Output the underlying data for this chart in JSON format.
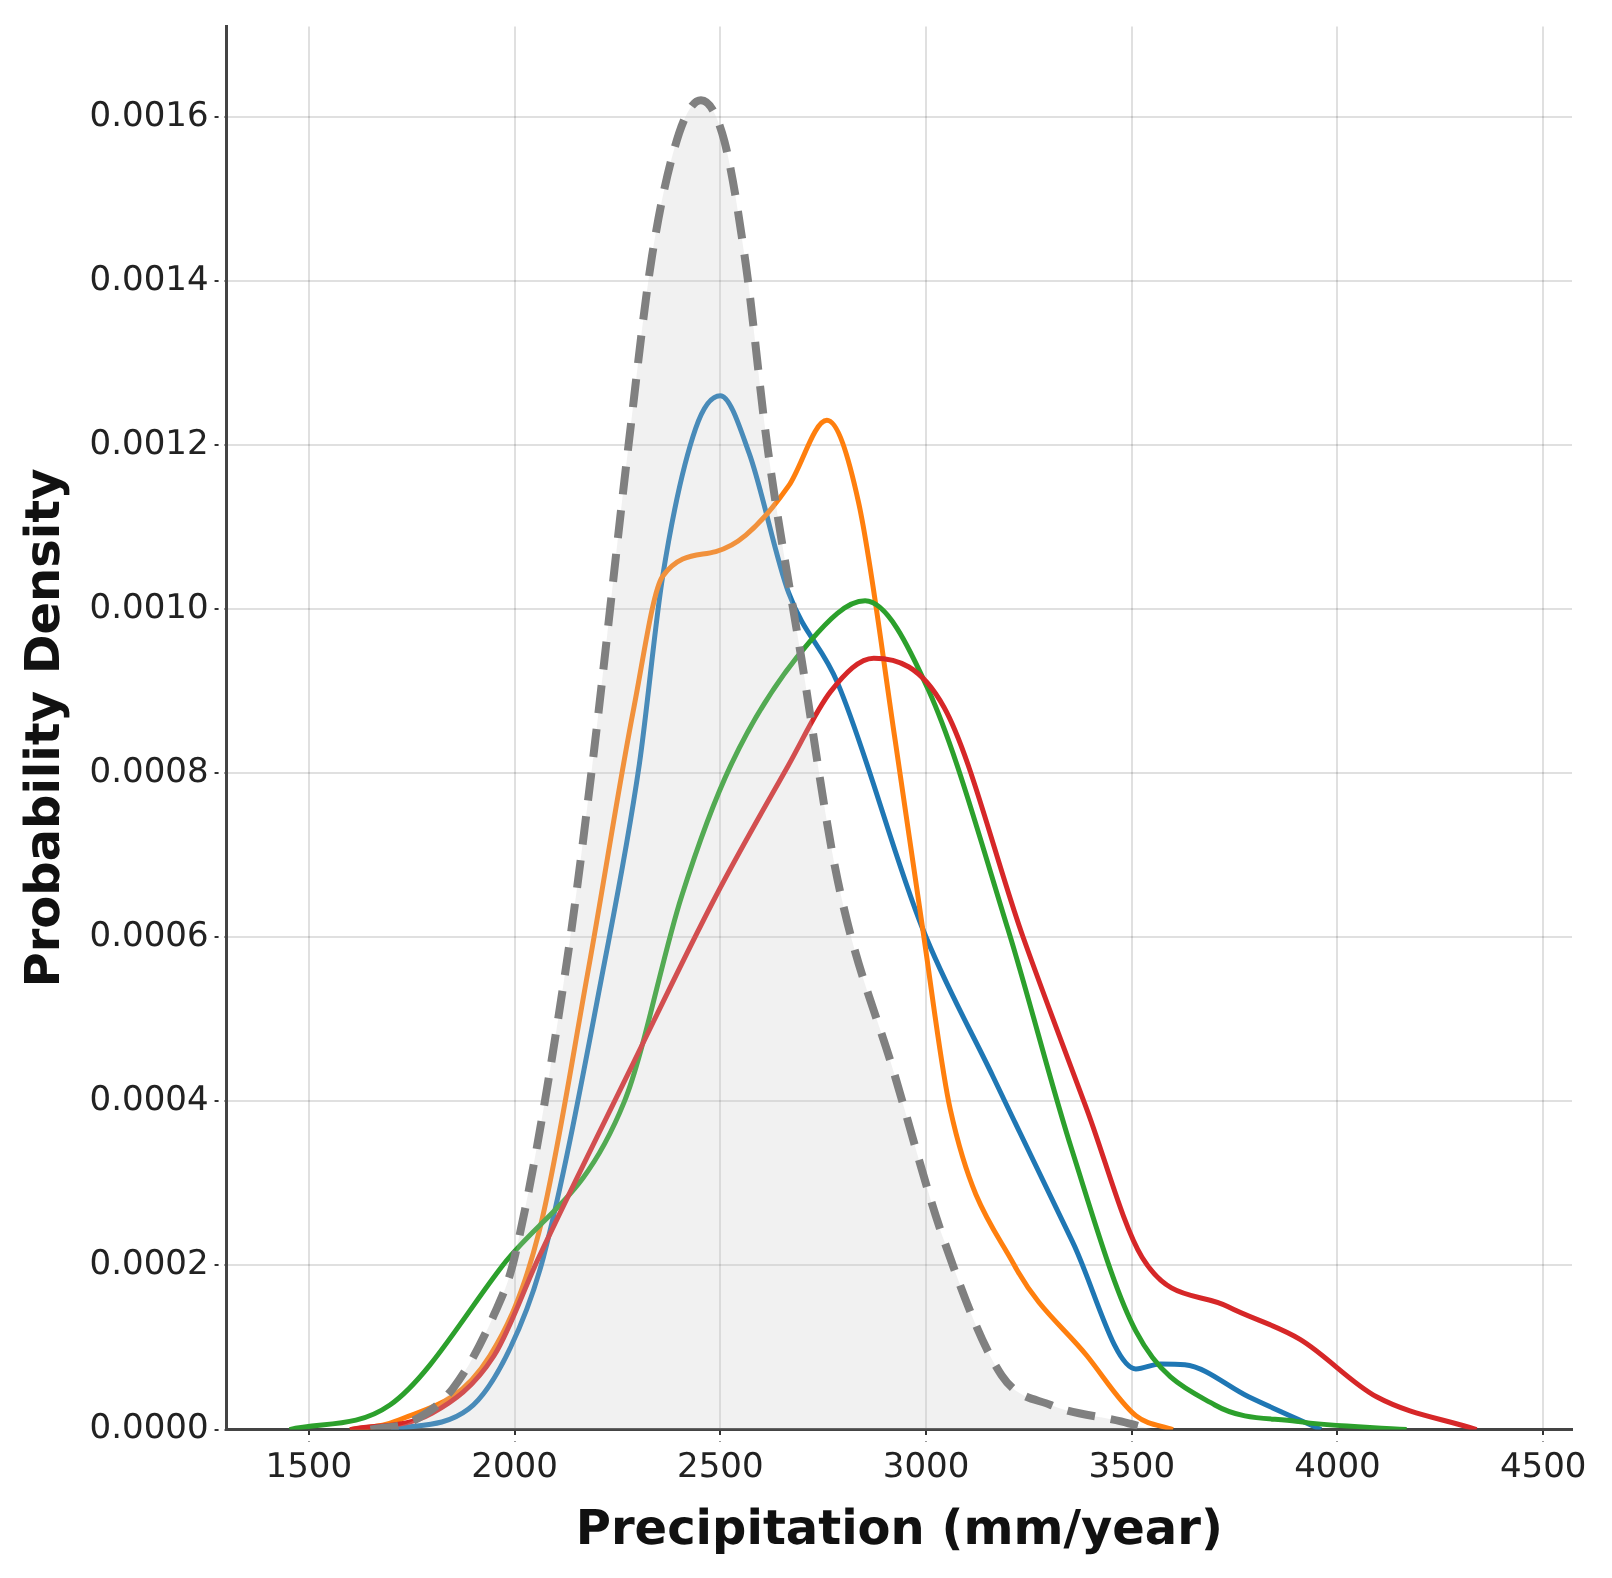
{
  "chart_data": {
    "type": "line",
    "xlabel": "Precipitation (mm/year)",
    "ylabel": "Probability Density",
    "xlim": [
      1300,
      4570
    ],
    "ylim": [
      0,
      0.00171
    ],
    "xticks": [
      1500,
      2000,
      2500,
      3000,
      3500,
      4000,
      4500
    ],
    "yticks": [
      {
        "value": 0,
        "label": "0.0000"
      },
      {
        "value": 0.0002,
        "label": "0.0002"
      },
      {
        "value": 0.0004,
        "label": "0.0004"
      },
      {
        "value": 0.0006,
        "label": "0.0006"
      },
      {
        "value": 0.0008,
        "label": "0.0008"
      },
      {
        "value": 0.001,
        "label": "0.0010"
      },
      {
        "value": 0.0012,
        "label": "0.0012"
      },
      {
        "value": 0.0014,
        "label": "0.0014"
      },
      {
        "value": 0.0016,
        "label": "0.0016"
      }
    ],
    "grid": true,
    "legend": false,
    "marker": "none",
    "series": [
      {
        "type": "area",
        "color": "#808080",
        "line_style": "dashed",
        "x": [
          1650,
          1750,
          1850,
          1950,
          2000,
          2127,
          2189,
          2277,
          2334,
          2400,
          2453,
          2510,
          2562,
          2614,
          2697,
          2785,
          2925,
          3044,
          3184,
          3303,
          3474,
          3550
        ],
        "values": [
          0,
          1e-05,
          5e-05,
          0.00014,
          0.00021,
          0.00057,
          0.00081,
          0.0012,
          0.00143,
          0.00158,
          0.00162,
          0.00157,
          0.00142,
          0.0012,
          0.00094,
          0.00067,
          0.00043,
          0.00023,
          6.6e-05,
          3e-05,
          1e-05,
          0
        ]
      },
      {
        "color": "#1f77b4",
        "line_style": "solid",
        "x": [
          1700,
          1888,
          1990,
          2070,
          2215,
          2303,
          2360,
          2440,
          2500,
          2570,
          2666,
          2785,
          2992,
          3163,
          3355,
          3510,
          3570,
          3629,
          3784,
          3960
        ],
        "values": [
          0,
          2.5e-05,
          0.0001,
          0.00021,
          0.00056,
          0.00081,
          0.00104,
          0.00122,
          0.00126,
          0.00119,
          0.00102,
          0.00091,
          0.00061,
          0.00043,
          0.00023,
          7.4e-05,
          8e-05,
          7.9e-05,
          4e-05,
          0
        ]
      },
      {
        "color": "#ff7f0e",
        "line_style": "solid",
        "x": [
          1600,
          1710,
          1940,
          2059,
          2179,
          2290,
          2360,
          2489,
          2562,
          2666,
          2759,
          2836,
          2925,
          2992,
          3059,
          3215,
          3391,
          3510,
          3600
        ],
        "values": [
          0,
          1e-05,
          9e-05,
          0.00024,
          0.00056,
          0.00088,
          0.00104,
          0.00107,
          0.00109,
          0.00115,
          0.00123,
          0.00113,
          0.00084,
          0.00061,
          0.00039,
          0.0002,
          9e-05,
          1.7e-05,
          0
        ]
      },
      {
        "color": "#2ca02c",
        "line_style": "solid",
        "x": [
          1453,
          1697,
          1971,
          2267,
          2406,
          2526,
          2717,
          2852,
          3007,
          3199,
          3355,
          3510,
          3702,
          3900,
          4168
        ],
        "values": [
          0,
          3e-05,
          0.0002,
          0.0004,
          0.00065,
          0.00081,
          0.00096,
          0.00101,
          0.0009,
          0.00061,
          0.00034,
          0.00012,
          3e-05,
          1e-05,
          0
        ]
      },
      {
        "color": "#d62728",
        "line_style": "solid",
        "x": [
          1600,
          1800,
          1950,
          2059,
          2282,
          2489,
          2666,
          2769,
          2873,
          3044,
          3236,
          3391,
          3525,
          3733,
          3909,
          4095,
          4338
        ],
        "values": [
          0,
          2e-05,
          9e-05,
          0.00021,
          0.00044,
          0.00065,
          0.00081,
          0.0009,
          0.00094,
          0.00088,
          0.0006,
          0.00039,
          0.00021,
          0.00015,
          0.00011,
          4e-05,
          0
        ]
      }
    ]
  }
}
